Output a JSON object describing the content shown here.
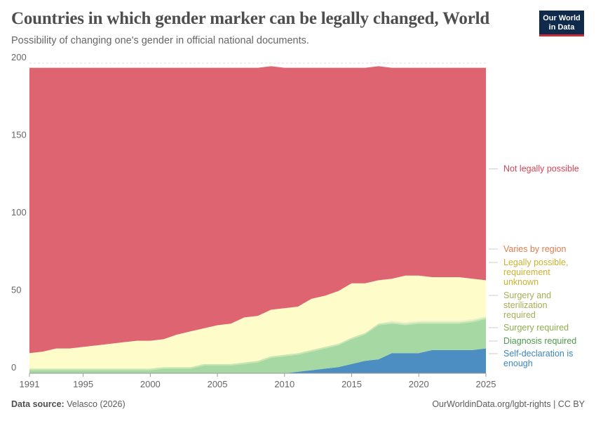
{
  "header": {
    "title": "Countries in which gender marker can be legally changed, World",
    "subtitle": "Possibility of changing one's gender in official national documents.",
    "logo_line1": "Our World",
    "logo_line2": "in Data"
  },
  "footer": {
    "source_label": "Data source:",
    "source_value": "Velasco (2026)",
    "link": "OurWorldinData.org/lgbt-rights | CC BY"
  },
  "chart_data": {
    "type": "area",
    "stacked": true,
    "x": [
      1991,
      1992,
      1993,
      1994,
      1995,
      1996,
      1997,
      1998,
      1999,
      2000,
      2001,
      2002,
      2003,
      2004,
      2005,
      2006,
      2007,
      2008,
      2009,
      2010,
      2011,
      2012,
      2013,
      2014,
      2015,
      2016,
      2017,
      2018,
      2019,
      2020,
      2021,
      2022,
      2023,
      2024,
      2025
    ],
    "xticks": [
      1991,
      1995,
      2000,
      2005,
      2010,
      2015,
      2020,
      2025
    ],
    "yticks": [
      0,
      50,
      100,
      150,
      200
    ],
    "ylim": [
      0,
      200
    ],
    "series": [
      {
        "name": "Self-declaration is enough",
        "color": "#4c8dc2",
        "values": [
          0,
          0,
          0,
          0,
          0,
          0,
          0,
          0,
          0,
          0,
          0,
          0,
          0,
          0,
          0,
          0,
          0,
          0,
          0,
          0,
          1,
          2,
          3,
          4,
          6,
          8,
          9,
          13,
          13,
          13,
          15,
          15,
          15,
          15,
          16
        ]
      },
      {
        "name": "Diagnosis required",
        "color": "#a5d8a3",
        "values": [
          2,
          2,
          2,
          2,
          2,
          2,
          2,
          2,
          2,
          2,
          3,
          3,
          3,
          5,
          5,
          5,
          6,
          7,
          10,
          11,
          11,
          12,
          13,
          14,
          16,
          17,
          22,
          19,
          18,
          19,
          17,
          17,
          17,
          18,
          19
        ]
      },
      {
        "name": "Surgery required",
        "color": "#c8e6b0",
        "values": [
          1,
          1,
          1,
          1,
          1,
          1,
          1,
          1,
          1,
          1,
          1,
          1,
          1,
          1,
          1,
          1,
          1,
          1,
          1,
          1,
          1,
          1,
          1,
          1,
          1,
          1,
          1,
          1,
          1,
          1,
          1,
          1,
          1,
          1,
          1
        ]
      },
      {
        "name": "Surgery and sterilization required",
        "color": "#eef2cc",
        "values": [
          0,
          0,
          0,
          0,
          0,
          0,
          0,
          0,
          0,
          0,
          0,
          0,
          0,
          0,
          0,
          0,
          0,
          0,
          0,
          0,
          0,
          0,
          0,
          0,
          0,
          0,
          0,
          1,
          1,
          1,
          1,
          1,
          1,
          1,
          1
        ]
      },
      {
        "name": "Legally possible, requirement unknown",
        "color": "#fefcc8",
        "values": [
          10,
          11,
          13,
          13,
          14,
          15,
          16,
          17,
          18,
          18,
          18,
          21,
          23,
          23,
          25,
          26,
          29,
          29,
          30,
          30,
          30,
          33,
          33,
          34,
          35,
          32,
          28,
          27,
          30,
          29,
          28,
          28,
          28,
          26,
          23
        ]
      },
      {
        "name": "Varies by region",
        "color": "#f2ad8a",
        "values": [
          0,
          0,
          0,
          0,
          0,
          0,
          0,
          0,
          0,
          0,
          0,
          0,
          0,
          0,
          0,
          0,
          0,
          0,
          0,
          0,
          0,
          0,
          0,
          0,
          0,
          0,
          0,
          0,
          0,
          0,
          0,
          0,
          0,
          0,
          0
        ]
      },
      {
        "name": "Not legally possible",
        "color": "#de6471",
        "values": [
          184,
          183,
          181,
          181,
          180,
          179,
          178,
          177,
          176,
          176,
          175,
          172,
          170,
          168,
          166,
          165,
          161,
          160,
          157,
          155,
          154,
          149,
          147,
          144,
          139,
          139,
          138,
          136,
          134,
          134,
          135,
          135,
          135,
          136,
          137
        ]
      }
    ],
    "legend": [
      {
        "label": "Not legally possible",
        "color": "#d64455"
      },
      {
        "label": "Varies by region",
        "color": "#e07b4f"
      },
      {
        "label": "Legally possible, requirement unknown",
        "color": "#c9b22f"
      },
      {
        "label": "Surgery and sterilization required",
        "color": "#a7ad54"
      },
      {
        "label": "Surgery required",
        "color": "#8fae4d"
      },
      {
        "label": "Diagnosis required",
        "color": "#4e9a4e"
      },
      {
        "label": "Self-declaration is enough",
        "color": "#3c86c0"
      }
    ],
    "legend_placement": "right",
    "grid": true
  }
}
